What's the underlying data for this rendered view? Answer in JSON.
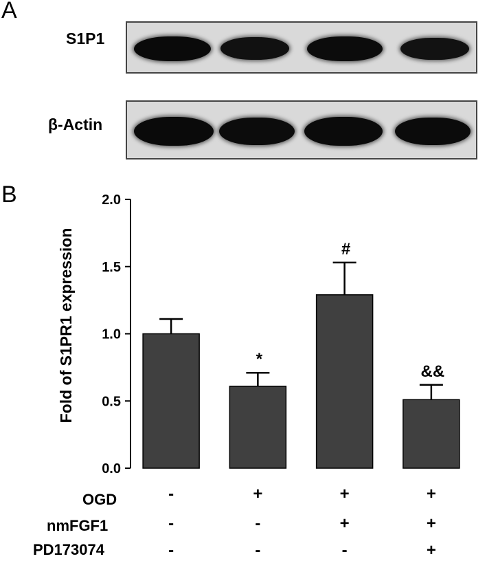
{
  "panel_a": {
    "letter": "A",
    "blots": [
      {
        "label": "S1P1",
        "band_intensity": [
          1.0,
          0.78,
          0.95,
          0.72
        ]
      },
      {
        "label": "β-Actin",
        "band_intensity": [
          1.0,
          0.95,
          0.98,
          0.97
        ]
      }
    ]
  },
  "panel_b": {
    "letter": "B"
  },
  "chart_data": {
    "type": "bar",
    "ylabel": "Fold of S1PR1 expression",
    "ylim": [
      0,
      2.0
    ],
    "yticks": [
      "0.0",
      "0.5",
      "1.0",
      "1.5",
      "2.0"
    ],
    "bar_color": "#404040",
    "values": [
      1.0,
      0.61,
      1.29,
      0.51
    ],
    "errors": [
      0.11,
      0.1,
      0.24,
      0.11
    ],
    "annotations": [
      "",
      "*",
      "#",
      "&&"
    ]
  },
  "conditions": [
    {
      "label": "OGD",
      "signs": [
        "-",
        "+",
        "+",
        "+"
      ]
    },
    {
      "label": "nmFGF1",
      "signs": [
        "-",
        "-",
        "+",
        "+"
      ]
    },
    {
      "label": "PD173074",
      "signs": [
        "-",
        "-",
        "-",
        "+"
      ]
    }
  ]
}
